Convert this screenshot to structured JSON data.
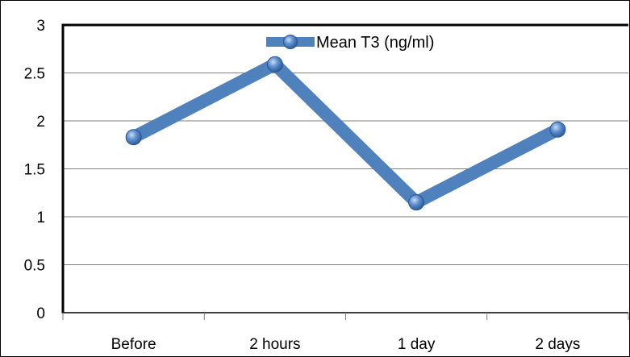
{
  "chart_data": {
    "type": "line",
    "categories": [
      "Before",
      "2 hours",
      "1 day",
      "2 days"
    ],
    "series": [
      {
        "name": "Mean T3 (ng/ml)",
        "values": [
          1.83,
          2.59,
          1.15,
          1.91
        ],
        "color": "#4F81BD",
        "marker_color": "#4F81BD"
      }
    ],
    "title": "",
    "xlabel": "",
    "ylabel": "",
    "ylim": [
      0,
      3
    ],
    "yticks": [
      "0",
      "0.5",
      "1",
      "1.5",
      "2",
      "2.5",
      "3"
    ],
    "grid": true,
    "legend": "top"
  }
}
